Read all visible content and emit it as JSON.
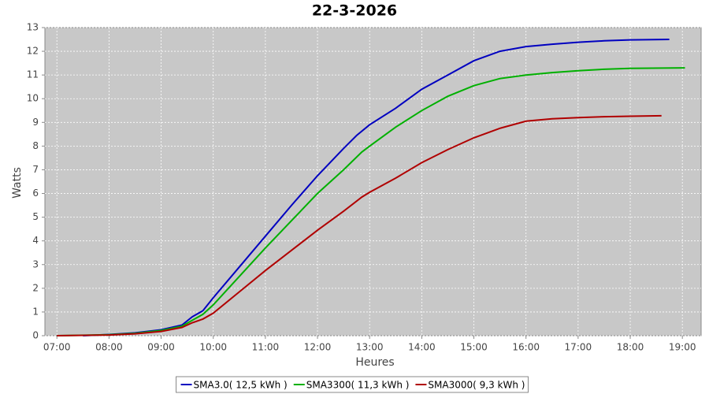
{
  "chart_data": {
    "type": "line",
    "title": "22-3-2026",
    "x_label": "Heures",
    "y_label": "Watts",
    "xlim": [
      6.77,
      19.36
    ],
    "ylim": [
      0,
      13
    ],
    "xticks": [
      {
        "value": 7,
        "label": "07:00"
      },
      {
        "value": 8,
        "label": "08:00"
      },
      {
        "value": 9,
        "label": "09:00"
      },
      {
        "value": 10,
        "label": "10:00"
      },
      {
        "value": 11,
        "label": "11:00"
      },
      {
        "value": 12,
        "label": "12:00"
      },
      {
        "value": 13,
        "label": "13:00"
      },
      {
        "value": 14,
        "label": "14:00"
      },
      {
        "value": 15,
        "label": "15:00"
      },
      {
        "value": 16,
        "label": "16:00"
      },
      {
        "value": 17,
        "label": "17:00"
      },
      {
        "value": 18,
        "label": "18:00"
      },
      {
        "value": 19,
        "label": "19:00"
      }
    ],
    "yticks": [
      0,
      1,
      2,
      3,
      4,
      5,
      6,
      7,
      8,
      9,
      10,
      11,
      12,
      13
    ],
    "grid": true,
    "legend": "bottom",
    "series": [
      {
        "name": "SMA3.0( 12,5 kWh )",
        "color": "#0000c0",
        "x": [
          7.5,
          8.0,
          8.5,
          9.0,
          9.4,
          9.6,
          9.8,
          10.0,
          10.5,
          11.0,
          11.5,
          12.0,
          12.5,
          12.75,
          13.0,
          13.5,
          14.0,
          14.5,
          15.0,
          15.5,
          16.0,
          16.5,
          17.0,
          17.5,
          18.0,
          18.75
        ],
        "values": [
          0,
          0.05,
          0.12,
          0.25,
          0.45,
          0.8,
          1.05,
          1.6,
          2.9,
          4.2,
          5.5,
          6.75,
          7.9,
          8.45,
          8.9,
          9.6,
          10.4,
          11.0,
          11.6,
          12.0,
          12.2,
          12.3,
          12.38,
          12.44,
          12.48,
          12.5
        ]
      },
      {
        "name": "SMA3300( 11,3 kWh )",
        "color": "#00b000",
        "x": [
          7.0,
          8.0,
          8.5,
          9.0,
          9.4,
          9.6,
          9.8,
          10.0,
          10.5,
          11.0,
          11.5,
          12.0,
          12.5,
          12.85,
          13.0,
          13.5,
          14.0,
          14.5,
          15.0,
          15.5,
          16.0,
          16.5,
          17.0,
          17.5,
          18.0,
          19.05
        ],
        "values": [
          0,
          0.04,
          0.1,
          0.22,
          0.4,
          0.65,
          0.9,
          1.3,
          2.5,
          3.7,
          4.85,
          6.0,
          7.0,
          7.75,
          8.0,
          8.8,
          9.5,
          10.1,
          10.55,
          10.85,
          11.0,
          11.1,
          11.18,
          11.24,
          11.28,
          11.3
        ]
      },
      {
        "name": "SMA3000( 9,3 kWh )",
        "color": "#b00000",
        "x": [
          7.0,
          8.0,
          8.5,
          9.0,
          9.4,
          9.6,
          9.8,
          10.0,
          10.5,
          11.0,
          11.5,
          12.0,
          12.5,
          12.85,
          13.0,
          13.5,
          14.0,
          14.5,
          15.0,
          15.5,
          16.0,
          16.5,
          17.0,
          17.5,
          18.0,
          18.6
        ],
        "values": [
          0,
          0.03,
          0.08,
          0.18,
          0.35,
          0.55,
          0.7,
          0.95,
          1.85,
          2.75,
          3.6,
          4.45,
          5.25,
          5.85,
          6.05,
          6.65,
          7.3,
          7.85,
          8.35,
          8.75,
          9.05,
          9.15,
          9.2,
          9.24,
          9.26,
          9.28
        ]
      }
    ]
  }
}
